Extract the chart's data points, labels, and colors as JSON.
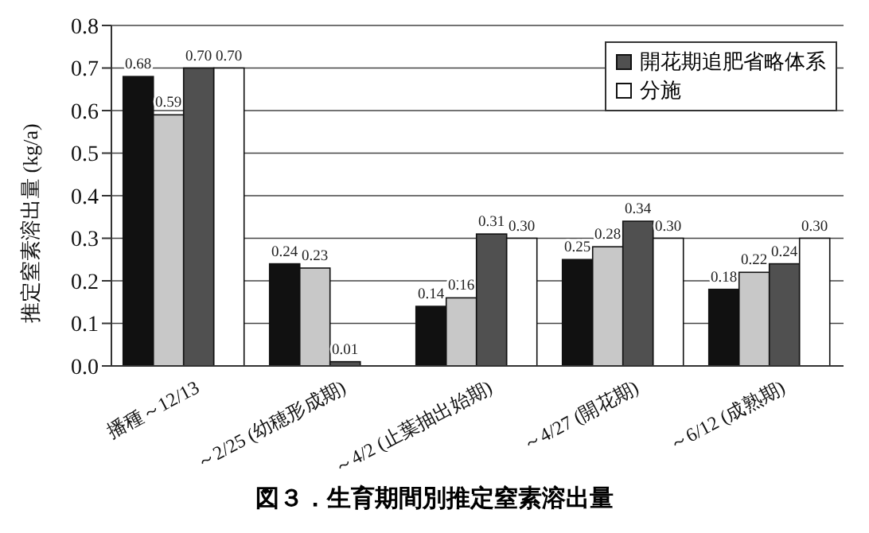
{
  "chart_data": {
    "type": "bar",
    "title": "図３．生育期間別推定窒素溶出量",
    "ylabel": "推定窒素溶出量 (kg/a)",
    "categories": [
      "播種～12/13",
      "～2/25 (幼穂形成期)",
      "～4/2 (止葉抽出始期)",
      "～4/27 (開花期)",
      "～6/12 (成熟期)"
    ],
    "series": [
      {
        "color": "#111111",
        "values": [
          0.68,
          0.24,
          0.14,
          0.25,
          0.18
        ],
        "value_labels": [
          "0.68",
          "0.24",
          "0.14",
          "0.25",
          "0.18"
        ]
      },
      {
        "color": "#c8c8c8",
        "values": [
          0.59,
          0.23,
          0.16,
          0.28,
          0.22
        ],
        "value_labels": [
          "0.59",
          "0.23",
          "0.16",
          "0.28",
          "0.22"
        ]
      },
      {
        "name": "開花期追肥省略体系",
        "color": "#505050",
        "values": [
          0.7,
          0.01,
          0.31,
          0.34,
          0.24
        ],
        "value_labels": [
          "0.70",
          "0.01",
          "0.31",
          "0.34",
          "0.24"
        ]
      },
      {
        "name": "分施",
        "color": "#ffffff",
        "values": [
          0.7,
          null,
          0.3,
          0.3,
          0.3
        ],
        "value_labels": [
          "0.70",
          null,
          "0.30",
          "0.30",
          "0.30"
        ]
      }
    ],
    "ylim": [
      0,
      0.8
    ],
    "yticks": [
      {
        "value": 0,
        "label": "0.0"
      },
      {
        "value": 0.1,
        "label": "0.1"
      },
      {
        "value": 0.2,
        "label": "0.2"
      },
      {
        "value": 0.3,
        "label": "0.3"
      },
      {
        "value": 0.4,
        "label": "0.4"
      },
      {
        "value": 0.5,
        "label": "0.5"
      },
      {
        "value": 0.6,
        "label": "0.6"
      },
      {
        "value": 0.7,
        "label": "0.7"
      },
      {
        "value": 0.8,
        "label": "0.8"
      }
    ],
    "grid": "y",
    "legend": "top right"
  }
}
